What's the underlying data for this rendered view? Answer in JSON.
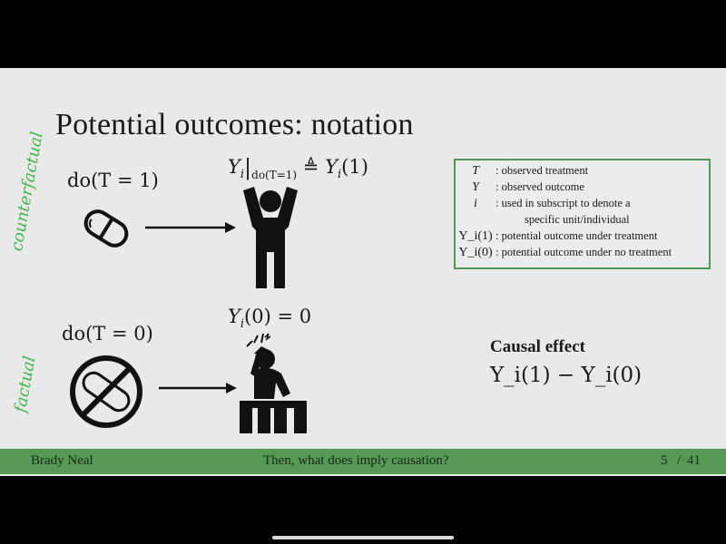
{
  "slide": {
    "title": "Potential outcomes: notation",
    "handwritten": {
      "top": "counterfactual",
      "bottom": "factual"
    },
    "top_row": {
      "do_label": "do(T = 1)",
      "outcome_lhs": "Y",
      "outcome_sub": "i",
      "outcome_bar_sub": "do(T=1)",
      "outcome_rel": "≜",
      "outcome_rhs": "Y",
      "outcome_rhs_sub": "i",
      "outcome_rhs_arg": "(1)"
    },
    "bottom_row": {
      "do_label": "do(T = 0)",
      "outcome_Y": "Y",
      "outcome_sub": "i",
      "outcome_rest": "(0) = 0"
    },
    "notation_box": [
      {
        "symbol": "T",
        "description": ": observed treatment"
      },
      {
        "symbol": "Y",
        "description": ": observed outcome"
      },
      {
        "symbol": "i",
        "description": ": used in subscript to denote a"
      },
      {
        "symbol": "",
        "description": "specific unit/individual"
      },
      {
        "symbol": "Y_i(1)",
        "description": ": potential outcome under treatment"
      },
      {
        "symbol": "Y_i(0)",
        "description": ": potential outcome under no treatment"
      }
    ],
    "causal_effect": {
      "heading": "Causal effect",
      "formula": "Y_i(1) − Y_i(0)"
    },
    "icons": {
      "pill": "pill-icon",
      "no_pill": "no-pill-icon",
      "person_arms_up": "person-arms-up-icon",
      "person_headache": "person-headache-icon",
      "arrow": "arrow-right-icon"
    },
    "colors": {
      "background": "#e9e9e9",
      "footer": "#559955",
      "handwriting": "#3cb94a",
      "box_border": "#4f9a4f"
    }
  },
  "footer": {
    "author": "Brady Neal",
    "talk": "Then, what does imply causation?",
    "page": "5",
    "separator": "/",
    "total": "41"
  }
}
